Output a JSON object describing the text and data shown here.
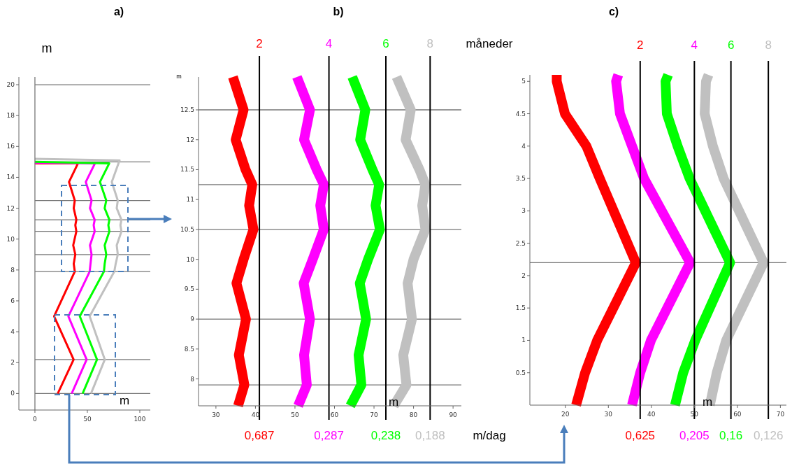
{
  "chart_data": [
    {
      "type": "line",
      "title": "a)",
      "xlabel": "m",
      "ylabel": "m",
      "xlim": [
        -15.3,
        110
      ],
      "ylim": [
        -1.07,
        20.5
      ],
      "xticks": [
        0,
        50,
        100
      ],
      "yticks": [
        0,
        2,
        4,
        6,
        8,
        10,
        12,
        14,
        16,
        18,
        20
      ],
      "series": [
        {
          "color": "#ff0000",
          "x": [
            21.8,
            36.9,
            18.3,
            38,
            37,
            38.5,
            36.5,
            39.5,
            38.5,
            39.5,
            37,
            38,
            32.5,
            41,
            0
          ],
          "values": [
            0,
            2.2,
            5,
            7.9,
            8.4,
            9,
            9.6,
            10.5,
            10.9,
            11.25,
            12,
            12.5,
            13.7,
            14.9,
            14.9
          ]
        },
        {
          "color": "#ff00ff",
          "x": [
            35.1,
            49.3,
            31.9,
            52.2,
            53,
            54,
            52.5,
            57,
            56,
            57,
            52.5,
            54,
            48.5,
            57.2,
            0
          ],
          "values": [
            0,
            2.2,
            5,
            7.9,
            8.4,
            9,
            9.6,
            10.5,
            10.9,
            11.25,
            12,
            12.5,
            13.7,
            14.9,
            14.95
          ]
        },
        {
          "color": "#00ff00",
          "x": [
            45.5,
            59.2,
            42.8,
            65.8,
            66.5,
            68,
            66.5,
            71,
            70,
            71,
            66.5,
            68,
            62,
            70.8,
            0
          ],
          "values": [
            0,
            2.2,
            5,
            7.9,
            8.4,
            9,
            9.6,
            10.5,
            10.9,
            11.25,
            12,
            12.5,
            13.7,
            14.9,
            15
          ]
        },
        {
          "color": "#c0c0c0",
          "x": [
            53.5,
            66.6,
            52.2,
            75.7,
            77,
            79,
            78,
            82.5,
            81.5,
            82.5,
            78,
            79,
            73.3,
            80.7,
            0
          ],
          "values": [
            0,
            2.2,
            5,
            7.9,
            8.4,
            9,
            9.6,
            10.5,
            10.9,
            11.25,
            12,
            12.5,
            13.7,
            15.1,
            15.2
          ]
        }
      ],
      "ref_lines": [
        {
          "axis": "y",
          "value": 15
        },
        {
          "axis": "y",
          "value": 12.5
        },
        {
          "axis": "y",
          "value": 11.25
        },
        {
          "axis": "y",
          "value": 10.5
        },
        {
          "axis": "y",
          "value": 9
        },
        {
          "axis": "y",
          "value": 7.9
        },
        {
          "axis": "y",
          "value": 2.2
        },
        {
          "axis": "y",
          "value": 0
        },
        {
          "axis": "y",
          "value": 20
        },
        {
          "axis": "x",
          "value": 0
        }
      ]
    },
    {
      "type": "line",
      "title": "b)",
      "xlabel": "m",
      "ylabel": "m",
      "xlim": [
        25.6,
        92.1
      ],
      "ylim": [
        7.55,
        13.05
      ],
      "xticks": [
        30,
        40,
        50,
        60,
        70,
        80,
        90
      ],
      "yticks": [
        8,
        8.5,
        9,
        9.5,
        10,
        10.5,
        11,
        11.5,
        12,
        12.5
      ],
      "series": [
        {
          "name": "2",
          "color": "#ff0000",
          "x": [
            34.3,
            37,
            35,
            37.5,
            39.2,
            38.4,
            39.5,
            37,
            35.2,
            37.6,
            35.8,
            37.2,
            35.6
          ],
          "values": [
            13.05,
            12.5,
            12,
            11.5,
            11.25,
            10.9,
            10.5,
            10,
            9.6,
            9,
            8.4,
            7.9,
            7.55
          ]
        },
        {
          "name": "4",
          "color": "#ff00ff",
          "x": [
            50.5,
            53.8,
            52.3,
            55.5,
            57.3,
            56.4,
            57.3,
            54.5,
            52.2,
            53.8,
            52.3,
            53,
            50.8
          ],
          "values": [
            13.05,
            12.5,
            12,
            11.5,
            11.25,
            10.9,
            10.5,
            10,
            9.6,
            9,
            8.4,
            7.9,
            7.55
          ]
        },
        {
          "name": "6",
          "color": "#00ff00",
          "x": [
            64.5,
            67.8,
            66.5,
            69.6,
            71.3,
            70.4,
            71.5,
            68.5,
            66.4,
            68,
            66.1,
            66.8,
            64
          ],
          "values": [
            13.05,
            12.5,
            12,
            11.5,
            11.25,
            10.9,
            10.5,
            10,
            9.6,
            9,
            8.4,
            7.9,
            7.55
          ]
        },
        {
          "name": "8",
          "color": "#c0c0c0",
          "x": [
            75.7,
            79.3,
            78,
            81.5,
            83,
            82.2,
            83,
            80,
            78.5,
            79.6,
            77.4,
            78.2,
            75
          ],
          "values": [
            13.05,
            12.5,
            12,
            11.5,
            11.25,
            10.9,
            10.5,
            10,
            9.6,
            9,
            8.4,
            7.9,
            7.55
          ]
        }
      ],
      "ref_lines": [
        {
          "axis": "x",
          "value": 41
        },
        {
          "axis": "x",
          "value": 58.6
        },
        {
          "axis": "x",
          "value": 73
        },
        {
          "axis": "x",
          "value": 84.2
        },
        {
          "axis": "y",
          "value": 12.5
        },
        {
          "axis": "y",
          "value": 11.25
        },
        {
          "axis": "y",
          "value": 10.5
        },
        {
          "axis": "y",
          "value": 9
        },
        {
          "axis": "y",
          "value": 7.9
        }
      ],
      "annotations": [
        "0,687",
        "0,287",
        "0,238",
        "0,188",
        "måneder",
        "m/dag"
      ]
    },
    {
      "type": "line",
      "title": "c)",
      "xlabel": "m",
      "xlim": [
        11.75,
        71.4
      ],
      "ylim": [
        0,
        5.1
      ],
      "xticks": [
        20,
        30,
        40,
        50,
        60,
        70
      ],
      "yticks": [
        0.5,
        1,
        1.5,
        2,
        2.5,
        3,
        3.5,
        4,
        4.5,
        5
      ],
      "series": [
        {
          "name": "2",
          "color": "#ff0000",
          "x": [
            22.5,
            24.6,
            27.4,
            36.4,
            28,
            24.9,
            19.9,
            18,
            18
          ],
          "values": [
            0,
            0.5,
            1,
            2.2,
            3.5,
            4,
            4.5,
            5,
            5.1
          ]
        },
        {
          "name": "4",
          "color": "#ff00ff",
          "x": [
            35.5,
            37.4,
            39.9,
            49,
            38.3,
            35.5,
            32.7,
            31.8,
            32.3
          ],
          "values": [
            0,
            0.5,
            1,
            2.2,
            3.5,
            4,
            4.5,
            5,
            5.1
          ]
        },
        {
          "name": "6",
          "color": "#00ff00",
          "x": [
            45.5,
            47.4,
            50.2,
            58.3,
            48.9,
            46.1,
            43.6,
            43.3,
            43.9
          ],
          "values": [
            0,
            0.5,
            1,
            2.2,
            3.5,
            4,
            4.5,
            5,
            5.1
          ]
        },
        {
          "name": "8",
          "color": "#c0c0c0",
          "x": [
            53.6,
            55.2,
            57.4,
            66.1,
            56.8,
            54.3,
            52.4,
            52.7,
            53.3
          ],
          "values": [
            0,
            0.5,
            1,
            2.2,
            3.5,
            4,
            4.5,
            5,
            5.1
          ]
        }
      ],
      "ref_lines": [
        {
          "axis": "x",
          "value": 37.4
        },
        {
          "axis": "x",
          "value": 50
        },
        {
          "axis": "x",
          "value": 58.5
        },
        {
          "axis": "x",
          "value": 67.2
        },
        {
          "axis": "y",
          "value": 2.2
        }
      ],
      "annotations": [
        "0,625",
        "0,205",
        "0,16",
        "0,126"
      ]
    }
  ]
}
